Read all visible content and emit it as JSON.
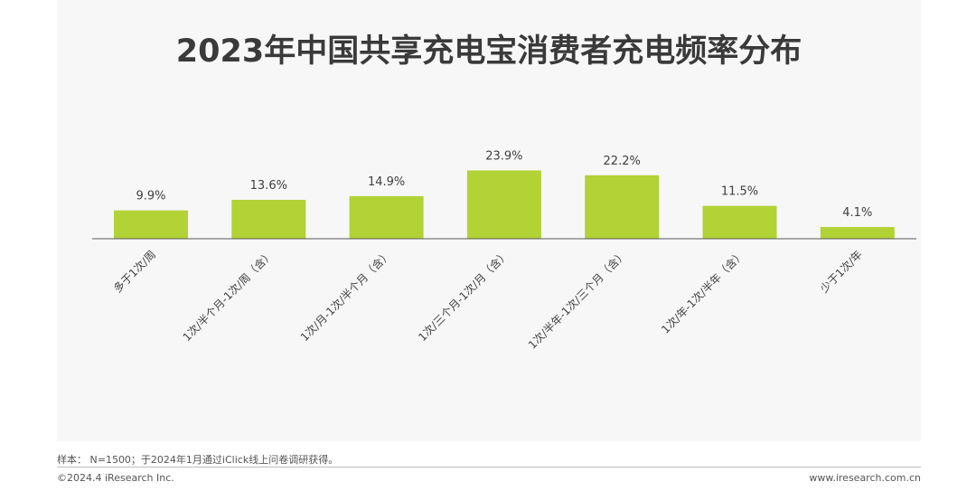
{
  "title": "2023年中国共享充电宝消费者充电频率分布",
  "footer": {
    "note": "样本：  N=1500；于2024年1月通过iClick线上问卷调研获得。",
    "copyright": "©2024.4 iResearch Inc.",
    "website": "www.iresearch.com.cn"
  },
  "colors": {
    "bar": "#b2d235",
    "panel": "#f7f7f7",
    "axis": "#595959",
    "text": "#404040"
  },
  "chart_data": {
    "type": "bar",
    "title": "2023年中国共享充电宝消费者充电频率分布",
    "categories": [
      "多于1次/周",
      "1次/半个月-1次/周（含）",
      "1次/月-1次/半个月（含）",
      "1次/三个月-1次/月（含）",
      "1次/半年-1次/三个月（含）",
      "1次/年-1次/半年（含）",
      "少于1次/年"
    ],
    "values": [
      9.9,
      13.6,
      14.9,
      23.9,
      22.2,
      11.5,
      4.1
    ],
    "data_labels": [
      "9.9%",
      "13.6%",
      "14.9%",
      "23.9%",
      "22.2%",
      "11.5%",
      "4.1%"
    ],
    "unit": "%",
    "ylim": [
      0,
      25
    ],
    "grid": false,
    "legend": "none"
  }
}
